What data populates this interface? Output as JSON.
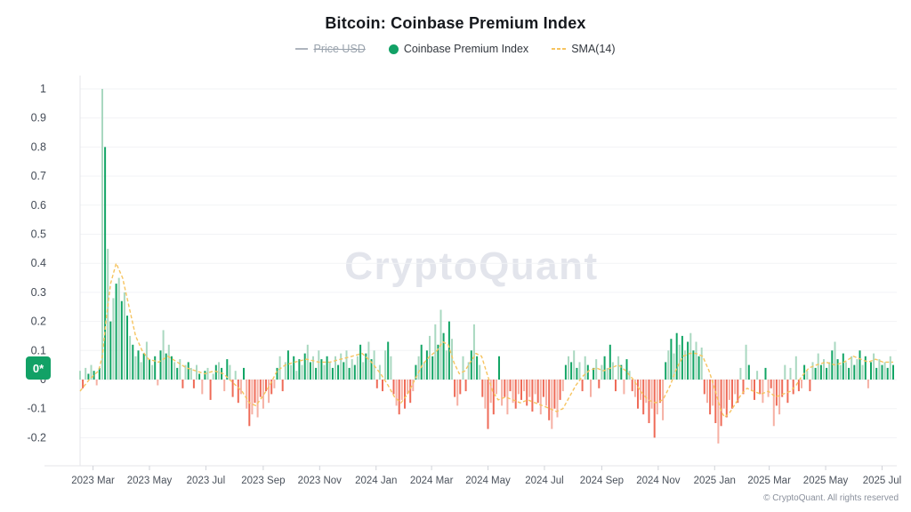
{
  "header": {
    "title": "Bitcoin: Coinbase Premium Index"
  },
  "legend": [
    {
      "label": "Price USD",
      "disabled": true,
      "icon": "line-icon",
      "color": "#aeb4bd"
    },
    {
      "label": "Coinbase Premium Index",
      "disabled": false,
      "icon": "dot-icon",
      "color": "#12a166"
    },
    {
      "label": "SMA(14)",
      "disabled": false,
      "icon": "dashes-icon",
      "color": "#f6c460"
    }
  ],
  "watermark": "CryptoQuant",
  "zero_badge": "0*",
  "footer": {
    "copyright": "© CryptoQuant. All rights reserved"
  },
  "colors": {
    "green_dark": "#12a565",
    "green_light": "#a9d8c0",
    "red_dark": "#ef6b58",
    "red_light": "#f6b0a4",
    "sma": "#f6c460",
    "gridline": "#f2f3f6",
    "axis": "#e4e5e9",
    "tick": "#cfd2d8",
    "y_label": "#454c57",
    "x_label": "#4b525c",
    "watermark": "#e3e5ec",
    "badge": "#12a166"
  },
  "chart_data": {
    "type": "bar",
    "title": "Bitcoin: Coinbase Premium Index",
    "series_name": "Coinbase Premium Index",
    "overlay_name": "SMA(14)",
    "x_start_date": "2023-02-15",
    "x_step_days": 3,
    "x_domain_days": 880,
    "ylim": [
      -0.28,
      1.05
    ],
    "grid": true,
    "legend_position": "top",
    "y_ticks": [
      {
        "label": "1",
        "value": 1
      },
      {
        "label": "0.9",
        "value": 0.9
      },
      {
        "label": "0.8",
        "value": 0.8
      },
      {
        "label": "0.7",
        "value": 0.7
      },
      {
        "label": "0.6",
        "value": 0.6
      },
      {
        "label": "0.5",
        "value": 0.5
      },
      {
        "label": "0.4",
        "value": 0.4
      },
      {
        "label": "0.3",
        "value": 0.3
      },
      {
        "label": "0.2",
        "value": 0.2
      },
      {
        "label": "0.1",
        "value": 0.1
      },
      {
        "label": "0",
        "value": 0
      },
      {
        "label": "-0.1",
        "value": -0.1
      },
      {
        "label": "-0.2",
        "value": -0.2
      }
    ],
    "x_ticks": [
      {
        "label": "2023 Mar",
        "day": 14
      },
      {
        "label": "2023 May",
        "day": 75
      },
      {
        "label": "2023 Jul",
        "day": 136
      },
      {
        "label": "2023 Sep",
        "day": 198
      },
      {
        "label": "2023 Nov",
        "day": 259
      },
      {
        "label": "2024 Jan",
        "day": 320
      },
      {
        "label": "2024 Mar",
        "day": 380
      },
      {
        "label": "2024 May",
        "day": 441
      },
      {
        "label": "2024 Jul",
        "day": 502
      },
      {
        "label": "2024 Sep",
        "day": 564
      },
      {
        "label": "2024 Nov",
        "day": 625
      },
      {
        "label": "2025 Jan",
        "day": 686
      },
      {
        "label": "2025 Mar",
        "day": 745
      },
      {
        "label": "2025 May",
        "day": 806
      },
      {
        "label": "2025 Jul",
        "day": 867
      }
    ],
    "values": [
      0.03,
      -0.03,
      0.04,
      0.02,
      0.05,
      0.03,
      -0.02,
      0.04,
      1.0,
      0.8,
      0.45,
      0.2,
      0.28,
      0.33,
      0.35,
      0.27,
      0.3,
      0.22,
      0.15,
      0.12,
      0.08,
      0.1,
      0.06,
      0.09,
      0.13,
      0.07,
      0.05,
      0.08,
      -0.02,
      0.1,
      0.17,
      0.09,
      0.12,
      0.08,
      0.06,
      0.04,
      0.07,
      -0.03,
      0.05,
      0.06,
      0.04,
      -0.03,
      0.05,
      0.02,
      -0.05,
      0.03,
      0.04,
      -0.07,
      0.02,
      0.05,
      0.06,
      0.04,
      -0.04,
      0.07,
      0.05,
      -0.06,
      0.03,
      -0.08,
      -0.05,
      0.04,
      -0.1,
      -0.16,
      -0.12,
      -0.08,
      -0.13,
      -0.06,
      -0.1,
      -0.04,
      -0.08,
      -0.05,
      -0.03,
      0.04,
      0.08,
      -0.04,
      0.06,
      0.1,
      0.05,
      0.08,
      0.03,
      0.07,
      0.05,
      0.09,
      0.12,
      0.06,
      0.08,
      0.04,
      0.1,
      0.07,
      0.05,
      0.08,
      0.06,
      0.04,
      0.08,
      0.05,
      0.09,
      0.06,
      0.1,
      0.04,
      0.07,
      0.05,
      0.08,
      0.12,
      0.06,
      0.09,
      0.13,
      0.07,
      0.1,
      -0.03,
      0.05,
      -0.04,
      0.1,
      0.13,
      0.08,
      -0.05,
      -0.09,
      -0.12,
      -0.07,
      -0.1,
      -0.05,
      -0.08,
      -0.04,
      0.05,
      0.08,
      0.12,
      0.06,
      0.1,
      0.15,
      0.08,
      0.19,
      0.12,
      0.24,
      0.16,
      0.1,
      0.2,
      0.14,
      -0.06,
      -0.09,
      -0.05,
      0.08,
      -0.04,
      0.06,
      0.1,
      0.19,
      0.08,
      0.05,
      -0.06,
      -0.1,
      -0.17,
      -0.08,
      -0.12,
      -0.05,
      0.08,
      -0.09,
      -0.06,
      -0.12,
      -0.04,
      -0.08,
      -0.1,
      -0.05,
      -0.07,
      -0.04,
      -0.09,
      -0.06,
      -0.11,
      -0.05,
      -0.08,
      -0.12,
      -0.06,
      -0.09,
      -0.14,
      -0.17,
      -0.1,
      -0.13,
      -0.07,
      -0.04,
      0.05,
      0.08,
      0.06,
      0.1,
      0.04,
      0.06,
      -0.04,
      0.08,
      0.05,
      -0.06,
      0.04,
      0.07,
      -0.03,
      0.05,
      0.08,
      0.04,
      0.12,
      0.06,
      -0.04,
      0.08,
      0.05,
      -0.05,
      0.07,
      0.03,
      -0.04,
      -0.06,
      -0.1,
      -0.07,
      -0.12,
      -0.08,
      -0.15,
      -0.1,
      -0.2,
      -0.12,
      -0.08,
      -0.14,
      0.06,
      0.1,
      0.14,
      0.09,
      0.16,
      0.12,
      0.15,
      0.1,
      0.13,
      0.16,
      0.1,
      0.13,
      0.08,
      0.11,
      -0.05,
      -0.08,
      -0.12,
      -0.09,
      -0.15,
      -0.22,
      -0.16,
      -0.1,
      -0.13,
      -0.07,
      -0.1,
      -0.05,
      -0.08,
      0.04,
      -0.05,
      0.12,
      0.05,
      -0.04,
      -0.07,
      0.03,
      -0.05,
      -0.08,
      0.04,
      -0.06,
      -0.03,
      -0.16,
      -0.09,
      -0.12,
      -0.06,
      0.05,
      -0.08,
      0.04,
      -0.05,
      0.08,
      -0.04,
      -0.03,
      0.05,
      0.03,
      -0.04,
      0.06,
      0.04,
      0.09,
      0.05,
      0.07,
      0.04,
      0.06,
      0.1,
      0.13,
      0.07,
      0.05,
      0.09,
      0.06,
      0.04,
      0.08,
      0.05,
      0.07,
      0.1,
      0.05,
      0.08,
      -0.03,
      0.06,
      0.09,
      0.04,
      0.07,
      0.05,
      0.06,
      0.04,
      0.08,
      0.05
    ],
    "sma": [
      [
        0,
        -0.04
      ],
      [
        10,
        0
      ],
      [
        20,
        0.03
      ],
      [
        24,
        0.08
      ],
      [
        28,
        0.2
      ],
      [
        33,
        0.33
      ],
      [
        39,
        0.4
      ],
      [
        46,
        0.35
      ],
      [
        53,
        0.25
      ],
      [
        60,
        0.15
      ],
      [
        67,
        0.1
      ],
      [
        74,
        0.07
      ],
      [
        85,
        0.06
      ],
      [
        95,
        0.08
      ],
      [
        105,
        0.06
      ],
      [
        115,
        0.04
      ],
      [
        125,
        0.03
      ],
      [
        135,
        0.02
      ],
      [
        145,
        0.03
      ],
      [
        155,
        0.02
      ],
      [
        165,
        -0.01
      ],
      [
        175,
        -0.04
      ],
      [
        183,
        -0.08
      ],
      [
        190,
        -0.09
      ],
      [
        197,
        -0.06
      ],
      [
        205,
        -0.02
      ],
      [
        213,
        0.03
      ],
      [
        222,
        0.05
      ],
      [
        232,
        0.06
      ],
      [
        245,
        0.07
      ],
      [
        258,
        0.06
      ],
      [
        270,
        0.06
      ],
      [
        282,
        0.07
      ],
      [
        294,
        0.08
      ],
      [
        305,
        0.09
      ],
      [
        315,
        0.06
      ],
      [
        325,
        0.02
      ],
      [
        333,
        -0.02
      ],
      [
        340,
        -0.06
      ],
      [
        347,
        -0.08
      ],
      [
        354,
        -0.05
      ],
      [
        362,
        0
      ],
      [
        370,
        0.05
      ],
      [
        378,
        0.08
      ],
      [
        386,
        0.1
      ],
      [
        392,
        0.13
      ],
      [
        398,
        0.12
      ],
      [
        404,
        0.06
      ],
      [
        410,
        0.02
      ],
      [
        416,
        0.03
      ],
      [
        422,
        0.06
      ],
      [
        428,
        0.09
      ],
      [
        434,
        0.08
      ],
      [
        440,
        0.02
      ],
      [
        446,
        -0.04
      ],
      [
        452,
        -0.07
      ],
      [
        460,
        -0.06
      ],
      [
        468,
        -0.07
      ],
      [
        476,
        -0.08
      ],
      [
        484,
        -0.07
      ],
      [
        492,
        -0.08
      ],
      [
        500,
        -0.09
      ],
      [
        508,
        -0.1
      ],
      [
        515,
        -0.11
      ],
      [
        522,
        -0.1
      ],
      [
        529,
        -0.06
      ],
      [
        536,
        -0.02
      ],
      [
        543,
        0.01
      ],
      [
        550,
        0.03
      ],
      [
        558,
        0.04
      ],
      [
        566,
        0.03
      ],
      [
        574,
        0.04
      ],
      [
        582,
        0.05
      ],
      [
        590,
        0.03
      ],
      [
        598,
        0
      ],
      [
        606,
        -0.04
      ],
      [
        614,
        -0.07
      ],
      [
        622,
        -0.08
      ],
      [
        630,
        -0.07
      ],
      [
        638,
        -0.02
      ],
      [
        645,
        0.04
      ],
      [
        652,
        0.08
      ],
      [
        659,
        0.09
      ],
      [
        666,
        0.09
      ],
      [
        673,
        0.08
      ],
      [
        680,
        0.03
      ],
      [
        687,
        -0.04
      ],
      [
        693,
        -0.11
      ],
      [
        697,
        -0.13
      ],
      [
        703,
        -0.11
      ],
      [
        709,
        -0.08
      ],
      [
        715,
        -0.05
      ],
      [
        721,
        -0.03
      ],
      [
        728,
        -0.04
      ],
      [
        736,
        -0.05
      ],
      [
        744,
        -0.04
      ],
      [
        752,
        -0.06
      ],
      [
        760,
        -0.05
      ],
      [
        768,
        -0.04
      ],
      [
        774,
        -0.02
      ],
      [
        780,
        0.01
      ],
      [
        788,
        0.04
      ],
      [
        796,
        0.05
      ],
      [
        806,
        0.06
      ],
      [
        816,
        0.05
      ],
      [
        826,
        0.06
      ],
      [
        836,
        0.08
      ],
      [
        844,
        0.07
      ],
      [
        852,
        0.06
      ],
      [
        860,
        0.07
      ],
      [
        868,
        0.06
      ],
      [
        879,
        0.06
      ]
    ]
  }
}
